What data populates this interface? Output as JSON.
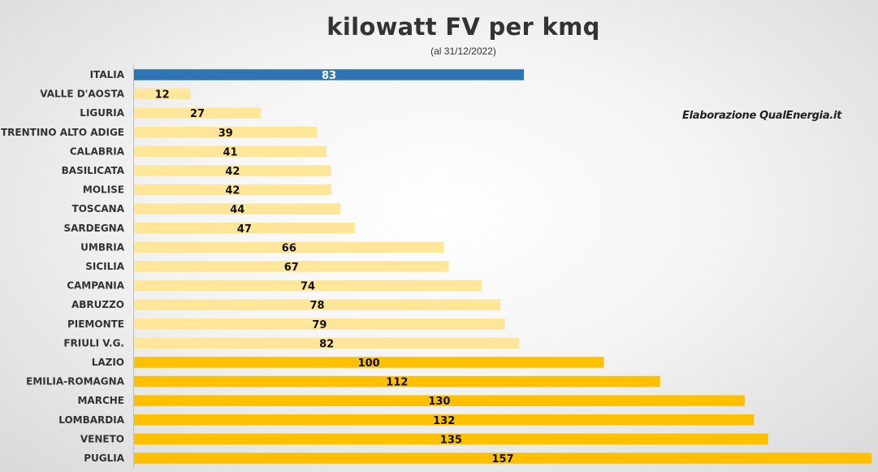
{
  "title": "kilowatt FV per kmq",
  "subtitle": "(al 31/12/2022)",
  "credit": "Elaborazione QualEnergia.it",
  "colors": {
    "highlight": "#2e75b6",
    "low": "#ffe699",
    "high": "#ffc000",
    "label_on_highlight": "#ffffff",
    "label": "#111111"
  },
  "chart_data": {
    "type": "bar",
    "orientation": "horizontal",
    "title": "kilowatt FV per kmq",
    "subtitle": "(al 31/12/2022)",
    "xlim": [
      0,
      157
    ],
    "grid": false,
    "data_labels": true,
    "categories": [
      "ITALIA",
      "VALLE D'AOSTA",
      "LIGURIA",
      "TRENTINO ALTO ADIGE",
      "CALABRIA",
      "BASILICATA",
      "MOLISE",
      "TOSCANA",
      "SARDEGNA",
      "UMBRIA",
      "SICILIA",
      "CAMPANIA",
      "ABRUZZO",
      "PIEMONTE",
      "FRIULI V.G.",
      "LAZIO",
      "EMILIA-ROMAGNA",
      "MARCHE",
      "LOMBARDIA",
      "VENETO",
      "PUGLIA"
    ],
    "values": [
      83,
      12,
      27,
      39,
      41,
      42,
      42,
      44,
      47,
      66,
      67,
      74,
      78,
      79,
      82,
      100,
      112,
      130,
      132,
      135,
      157
    ],
    "bar_colors": [
      "highlight",
      "low",
      "low",
      "low",
      "low",
      "low",
      "low",
      "low",
      "low",
      "low",
      "low",
      "low",
      "low",
      "low",
      "low",
      "high",
      "high",
      "high",
      "high",
      "high",
      "high"
    ]
  }
}
